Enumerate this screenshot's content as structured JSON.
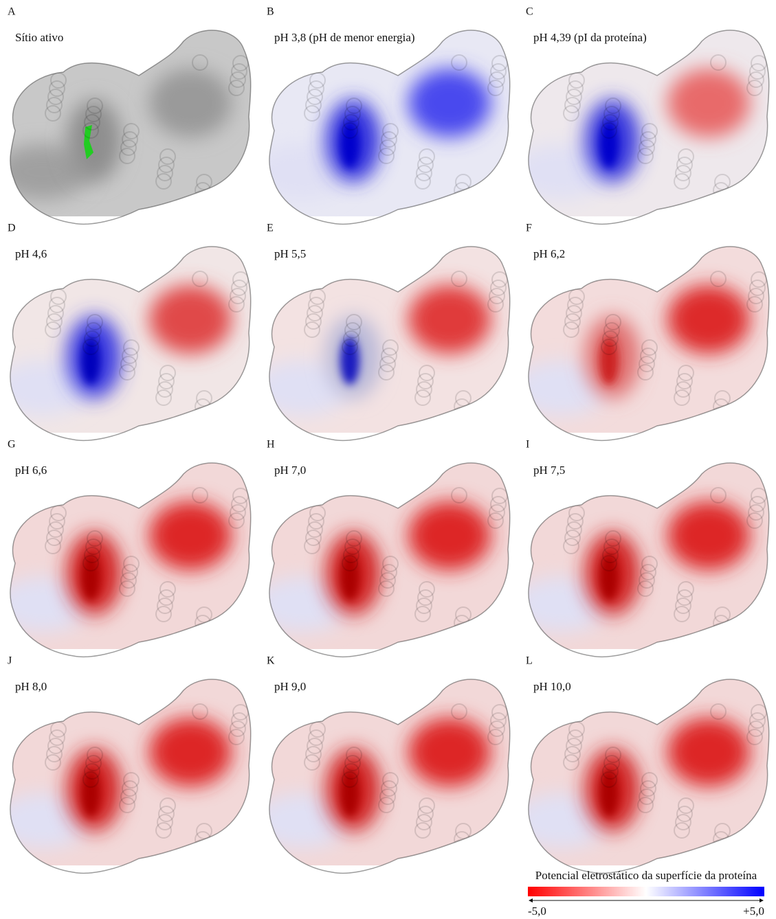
{
  "panels": [
    {
      "letter": "A",
      "label": "Sítio ativo"
    },
    {
      "letter": "B",
      "label": "pH 3,8 (pH de menor energia)"
    },
    {
      "letter": "C",
      "label": "pH 4,39 (pI da proteína)"
    },
    {
      "letter": "D",
      "label": "pH 4,6"
    },
    {
      "letter": "E",
      "label": "pH 5,5"
    },
    {
      "letter": "F",
      "label": "pH 6,2"
    },
    {
      "letter": "G",
      "label": "pH 6,6"
    },
    {
      "letter": "H",
      "label": "pH 7,0"
    },
    {
      "letter": "I",
      "label": "pH 7,5"
    },
    {
      "letter": "J",
      "label": "pH 8,0"
    },
    {
      "letter": "K",
      "label": "pH 9,0"
    },
    {
      "letter": "L",
      "label": "pH 10,0"
    }
  ],
  "colorbar": {
    "title": "Potencial eletrostático da superfície da proteína",
    "min_label": "-5,0",
    "max_label": "+5,0"
  }
}
